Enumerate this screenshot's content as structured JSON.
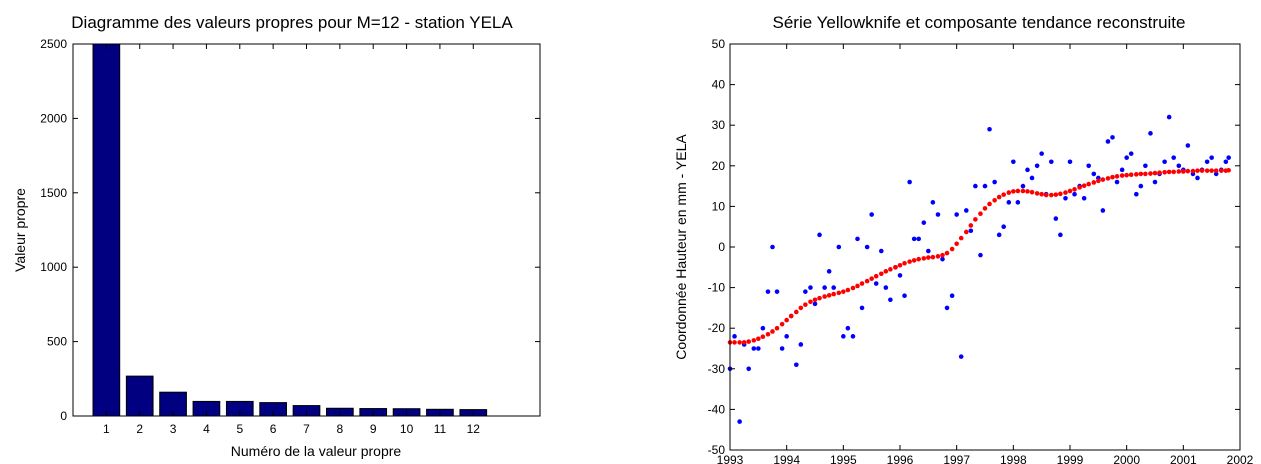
{
  "chart_data": [
    {
      "type": "bar",
      "title": "Diagramme des valeurs propres pour M=12 - station YELA",
      "xlabel": "Numéro de la valeur propre",
      "ylabel": "Valeur propre",
      "categories": [
        "1",
        "2",
        "3",
        "4",
        "5",
        "6",
        "7",
        "8",
        "9",
        "10",
        "11",
        "12"
      ],
      "values": [
        2500,
        268,
        160,
        98,
        98,
        90,
        70,
        52,
        50,
        49,
        45,
        43
      ],
      "xlim": [
        0,
        14
      ],
      "ylim": [
        0,
        2500
      ],
      "yticks": [
        0,
        500,
        1000,
        1500,
        2000,
        2500
      ],
      "bar_color": "#000080",
      "grid": false
    },
    {
      "type": "scatter",
      "title": "Série Yellowknife et composante tendance reconstruite",
      "xlabel": "",
      "ylabel": "Coordonnée Hauteur en mm - YELA",
      "xlim": [
        1993,
        2002
      ],
      "ylim": [
        -50,
        50
      ],
      "xticks": [
        1993,
        1994,
        1995,
        1996,
        1997,
        1998,
        1999,
        2000,
        2001,
        2002
      ],
      "yticks": [
        -50,
        -40,
        -30,
        -20,
        -10,
        0,
        10,
        20,
        30,
        40,
        50
      ],
      "grid": false,
      "series": [
        {
          "color": "#0000ff",
          "x": [
            1993.0,
            1993.08,
            1993.17,
            1993.25,
            1993.33,
            1993.42,
            1993.5,
            1993.58,
            1993.67,
            1993.75,
            1993.83,
            1993.92,
            1994.0,
            1994.08,
            1994.17,
            1994.25,
            1994.33,
            1994.42,
            1994.5,
            1994.58,
            1994.67,
            1994.75,
            1994.83,
            1994.92,
            1995.0,
            1995.08,
            1995.17,
            1995.25,
            1995.33,
            1995.42,
            1995.5,
            1995.58,
            1995.67,
            1995.75,
            1995.83,
            1995.92,
            1996.0,
            1996.08,
            1996.17,
            1996.25,
            1996.33,
            1996.42,
            1996.5,
            1996.58,
            1996.67,
            1996.75,
            1996.83,
            1996.92,
            1997.0,
            1997.08,
            1997.17,
            1997.25,
            1997.33,
            1997.42,
            1997.5,
            1997.58,
            1997.67,
            1997.75,
            1997.83,
            1997.92,
            1998.0,
            1998.08,
            1998.17,
            1998.25,
            1998.33,
            1998.42,
            1998.5,
            1998.58,
            1998.67,
            1998.75,
            1998.83,
            1998.92,
            1999.0,
            1999.08,
            1999.17,
            1999.25,
            1999.33,
            1999.42,
            1999.5,
            1999.58,
            1999.67,
            1999.75,
            1999.83,
            1999.92,
            2000.0,
            2000.08,
            2000.17,
            2000.25,
            2000.33,
            2000.42,
            2000.5,
            2000.58,
            2000.67,
            2000.75,
            2000.83,
            2000.92,
            2001.0,
            2001.08,
            2001.17,
            2001.25,
            2001.33,
            2001.42,
            2001.5,
            2001.58,
            2001.67,
            2001.75,
            2001.8
          ],
          "y": [
            -30,
            -22,
            -43,
            -24,
            -30,
            -25,
            -25,
            -20,
            -11,
            0,
            -11,
            -25,
            -22,
            -17,
            -29,
            -24,
            -11,
            -10,
            -14,
            3,
            -10,
            -6,
            -10,
            0,
            -22,
            -20,
            -22,
            2,
            -15,
            0,
            8,
            -9,
            -1,
            -10,
            -13,
            -5,
            -7,
            -12,
            16,
            2,
            2,
            6,
            -1,
            11,
            8,
            -3,
            -15,
            -12,
            8,
            -27,
            9,
            4,
            15,
            -2,
            15,
            29,
            16,
            3,
            5,
            11,
            21,
            11,
            15,
            19,
            17,
            20,
            23,
            13,
            21,
            7,
            3,
            12,
            21,
            13,
            15,
            12,
            20,
            18,
            17,
            9,
            26,
            27,
            16,
            19,
            22,
            23,
            13,
            15,
            20,
            28,
            16,
            18,
            21,
            32,
            22,
            20,
            19,
            25,
            18,
            17,
            19,
            21,
            22,
            18,
            19,
            21,
            22
          ]
        },
        {
          "color": "#ff0000",
          "x": [
            1993.0,
            1993.08,
            1993.17,
            1993.25,
            1993.33,
            1993.42,
            1993.5,
            1993.58,
            1993.67,
            1993.75,
            1993.83,
            1993.92,
            1994.0,
            1994.08,
            1994.17,
            1994.25,
            1994.33,
            1994.42,
            1994.5,
            1994.58,
            1994.67,
            1994.75,
            1994.83,
            1994.92,
            1995.0,
            1995.08,
            1995.17,
            1995.25,
            1995.33,
            1995.42,
            1995.5,
            1995.58,
            1995.67,
            1995.75,
            1995.83,
            1995.92,
            1996.0,
            1996.08,
            1996.17,
            1996.25,
            1996.33,
            1996.42,
            1996.5,
            1996.58,
            1996.67,
            1996.75,
            1996.83,
            1996.92,
            1997.0,
            1997.08,
            1997.17,
            1997.25,
            1997.33,
            1997.42,
            1997.5,
            1997.58,
            1997.67,
            1997.75,
            1997.83,
            1997.92,
            1998.0,
            1998.08,
            1998.17,
            1998.25,
            1998.33,
            1998.42,
            1998.5,
            1998.58,
            1998.67,
            1998.75,
            1998.83,
            1998.92,
            1999.0,
            1999.08,
            1999.17,
            1999.25,
            1999.33,
            1999.42,
            1999.5,
            1999.58,
            1999.67,
            1999.75,
            1999.83,
            1999.92,
            2000.0,
            2000.08,
            2000.17,
            2000.25,
            2000.33,
            2000.42,
            2000.5,
            2000.58,
            2000.67,
            2000.75,
            2000.83,
            2000.92,
            2001.0,
            2001.08,
            2001.17,
            2001.25,
            2001.33,
            2001.42,
            2001.5,
            2001.58,
            2001.67,
            2001.75,
            2001.8
          ],
          "y": [
            -23.5,
            -23.5,
            -23.5,
            -23.5,
            -23.3,
            -23.0,
            -22.6,
            -22.1,
            -21.5,
            -20.8,
            -20.0,
            -19.0,
            -18.0,
            -17.0,
            -16.0,
            -15.0,
            -14.2,
            -13.5,
            -13.0,
            -12.6,
            -12.2,
            -11.9,
            -11.6,
            -11.3,
            -11.0,
            -10.6,
            -10.1,
            -9.6,
            -9.0,
            -8.4,
            -7.8,
            -7.2,
            -6.6,
            -6.0,
            -5.5,
            -5.0,
            -4.5,
            -4.0,
            -3.6,
            -3.3,
            -3.0,
            -2.8,
            -2.6,
            -2.5,
            -2.3,
            -2.0,
            -1.5,
            -0.5,
            0.8,
            2.2,
            3.7,
            5.3,
            6.8,
            8.2,
            9.5,
            10.6,
            11.5,
            12.3,
            12.9,
            13.4,
            13.7,
            13.8,
            13.8,
            13.7,
            13.5,
            13.2,
            13.0,
            12.8,
            12.8,
            12.9,
            13.1,
            13.4,
            13.8,
            14.2,
            14.7,
            15.1,
            15.5,
            15.9,
            16.3,
            16.6,
            16.9,
            17.2,
            17.4,
            17.6,
            17.7,
            17.8,
            17.9,
            18.0,
            18.0,
            18.1,
            18.2,
            18.3,
            18.4,
            18.5,
            18.5,
            18.6,
            18.6,
            18.7,
            18.7,
            18.8,
            18.8,
            18.8,
            18.8,
            18.8,
            18.8,
            18.8,
            18.9
          ]
        }
      ]
    }
  ]
}
